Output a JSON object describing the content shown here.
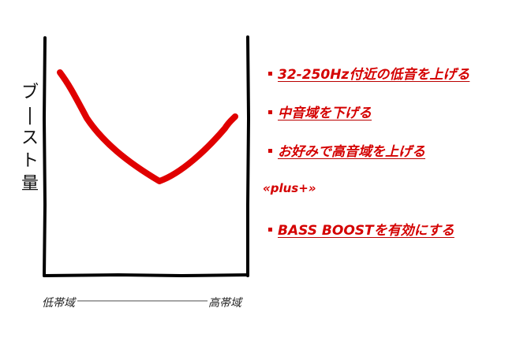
{
  "diagram": {
    "y_axis_label": "ブースト量",
    "x_axis_left_label": "低帯域",
    "x_axis_right_label": "高帯域",
    "curve_color": "#e00000",
    "curve_shape": "V-shaped EQ curve: high at low band, dip in mid band, rising at high band"
  },
  "list": {
    "items": [
      {
        "label": "32-250Hz付近の低音を上げる"
      },
      {
        "label": "中音域を下げる"
      },
      {
        "label": "お好みで高音域を上げる"
      }
    ],
    "plus_label": "«plus+»",
    "plus_items": [
      {
        "label": "BASS BOOSTを有効にする"
      }
    ],
    "text_color": "#d40000"
  }
}
